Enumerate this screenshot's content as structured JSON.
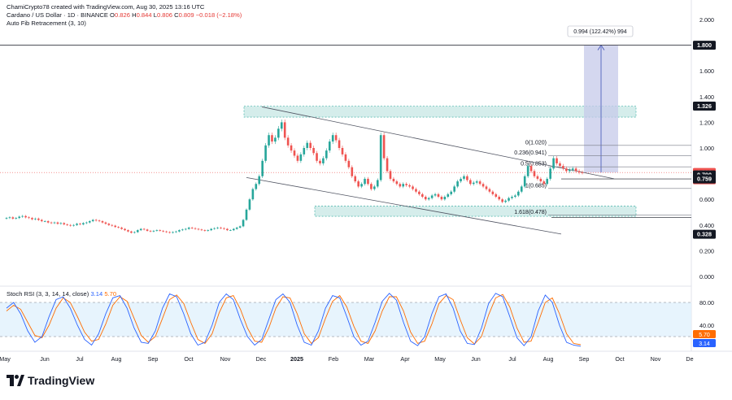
{
  "header": {
    "author_line": "ChamiCrypto78 created with TradingView.com, Aug 30, 2025 13:16 UTC",
    "symbol": "Cardano / US Dollar · 1D · BINANCE",
    "o_label": "O",
    "o_value": "0.826",
    "h_label": "H",
    "h_value": "0.844",
    "l_label": "L",
    "l_value": "0.806",
    "c_label": "C",
    "c_value": "0.809",
    "change": "−0.018 (−2.18%)",
    "indicator": "Auto Fib Retracement (3, 10)"
  },
  "rsi_header": {
    "label": "Stoch RSI (3, 3, 14, 14, close)",
    "k_value": "3.14",
    "d_value": "5.70"
  },
  "brand": {
    "name": "TradingView"
  },
  "colors": {
    "up": "#26a69a",
    "down": "#ef5350",
    "zone": "#b2dfdb",
    "zone_border": "#26a69a",
    "measure": "#c5cae9",
    "measure_line": "#3f51b5",
    "rsi_k": "#2962ff",
    "rsi_d": "#ff6d00",
    "rsi_band": "#e3f2fd"
  },
  "chart_data": [
    {
      "type": "candlestick",
      "title": "Cardano / US Dollar · 1D · BINANCE",
      "x_ticks": [
        "May",
        "Jun",
        "Jul",
        "Aug",
        "Sep",
        "Oct",
        "Nov",
        "Dec",
        "2025",
        "Feb",
        "Mar",
        "Apr",
        "May",
        "Jun",
        "Jul",
        "Aug",
        "Sep",
        "Oct",
        "Nov",
        "De"
      ],
      "y_ticks": [
        "0.000",
        "0.200",
        "0.400",
        "0.600",
        "0.800",
        "1.000",
        "1.200",
        "1.400",
        "1.600",
        "1.800",
        "2.000"
      ],
      "ylim": [
        0.0,
        2.0
      ],
      "price_tags": [
        {
          "value": "1.800",
          "price": 1.8,
          "style": "dark"
        },
        {
          "value": "1.326",
          "price": 1.326,
          "style": "dark"
        },
        {
          "value": "0.809",
          "price": 0.809,
          "style": "red",
          "sub": "10:43:01"
        },
        {
          "value": "0.790",
          "price": 0.79,
          "style": "dark"
        },
        {
          "value": "0.759",
          "price": 0.759,
          "style": "dark"
        },
        {
          "value": "0.328",
          "price": 0.328,
          "style": "dark"
        }
      ],
      "fib_levels": [
        {
          "label": "0(1.020)",
          "price": 1.02
        },
        {
          "label": "0.236(0.941)",
          "price": 0.941
        },
        {
          "label": "0.5(0.853)",
          "price": 0.853
        },
        {
          "label": "1(0.685)",
          "price": 0.685
        },
        {
          "label": "1.618(0.478)",
          "price": 0.478
        }
      ],
      "measure_label": "0.994 (122.42%) 994",
      "zones": [
        {
          "name": "resistance-zone",
          "top": 1.326,
          "bottom": 1.24
        },
        {
          "name": "support-zone",
          "top": 0.548,
          "bottom": 0.468
        }
      ],
      "closes": [
        0.455,
        0.46,
        0.45,
        0.455,
        0.465,
        0.47,
        0.46,
        0.455,
        0.445,
        0.45,
        0.44,
        0.43,
        0.43,
        0.42,
        0.415,
        0.42,
        0.41,
        0.415,
        0.405,
        0.4,
        0.395,
        0.4,
        0.41,
        0.405,
        0.415,
        0.42,
        0.43,
        0.44,
        0.435,
        0.43,
        0.42,
        0.41,
        0.4,
        0.395,
        0.385,
        0.38,
        0.37,
        0.36,
        0.35,
        0.34,
        0.345,
        0.36,
        0.37,
        0.365,
        0.355,
        0.35,
        0.355,
        0.36,
        0.355,
        0.35,
        0.345,
        0.34,
        0.345,
        0.35,
        0.36,
        0.365,
        0.37,
        0.38,
        0.375,
        0.37,
        0.365,
        0.36,
        0.355,
        0.36,
        0.37,
        0.375,
        0.38,
        0.375,
        0.37,
        0.36,
        0.36,
        0.37,
        0.38,
        0.39,
        0.44,
        0.52,
        0.6,
        0.68,
        0.72,
        0.78,
        0.9,
        1.02,
        1.1,
        1.05,
        1.08,
        1.15,
        1.2,
        1.08,
        1.02,
        0.98,
        0.94,
        0.9,
        0.95,
        1.0,
        1.04,
        1.0,
        0.96,
        0.9,
        0.88,
        0.92,
        0.98,
        1.05,
        1.1,
        1.06,
        1.0,
        0.95,
        0.9,
        0.85,
        0.78,
        0.74,
        0.7,
        0.72,
        0.76,
        0.72,
        0.68,
        0.7,
        0.75,
        1.1,
        0.92,
        0.82,
        0.76,
        0.74,
        0.72,
        0.7,
        0.72,
        0.71,
        0.7,
        0.68,
        0.66,
        0.64,
        0.62,
        0.6,
        0.61,
        0.63,
        0.64,
        0.62,
        0.6,
        0.62,
        0.64,
        0.66,
        0.7,
        0.74,
        0.76,
        0.78,
        0.75,
        0.72,
        0.73,
        0.74,
        0.72,
        0.7,
        0.68,
        0.66,
        0.64,
        0.62,
        0.6,
        0.58,
        0.59,
        0.61,
        0.62,
        0.63,
        0.66,
        0.7,
        0.78,
        0.86,
        0.82,
        0.78,
        0.76,
        0.74,
        0.72,
        0.76,
        0.84,
        0.92,
        0.88,
        0.86,
        0.84,
        0.82,
        0.83,
        0.84,
        0.82,
        0.81,
        0.809
      ],
      "stoch_rsi": {
        "label": "Stoch RSI (3, 3, 14, 14, close)",
        "k_last": 3.14,
        "d_last": 5.7,
        "y_ticks": [
          "40.00",
          "80.00"
        ],
        "band": [
          20,
          80
        ],
        "k_values": [
          70,
          80,
          60,
          30,
          10,
          20,
          55,
          85,
          90,
          70,
          40,
          15,
          5,
          25,
          60,
          88,
          92,
          70,
          35,
          10,
          8,
          30,
          70,
          95,
          90,
          60,
          25,
          5,
          10,
          40,
          80,
          95,
          85,
          50,
          20,
          5,
          15,
          50,
          85,
          95,
          80,
          40,
          10,
          5,
          30,
          70,
          92,
          88,
          55,
          20,
          5,
          12,
          45,
          82,
          96,
          84,
          45,
          12,
          4,
          20,
          60,
          90,
          95,
          70,
          30,
          8,
          6,
          35,
          78,
          96,
          90,
          55,
          18,
          4,
          20,
          65,
          93,
          80,
          40,
          10,
          5,
          3
        ],
        "d_values": [
          65,
          75,
          68,
          45,
          22,
          18,
          40,
          70,
          88,
          80,
          55,
          28,
          12,
          15,
          42,
          75,
          90,
          82,
          52,
          22,
          10,
          20,
          52,
          85,
          93,
          78,
          45,
          15,
          8,
          25,
          62,
          88,
          92,
          68,
          35,
          12,
          10,
          35,
          70,
          90,
          88,
          60,
          25,
          8,
          18,
          52,
          82,
          92,
          72,
          38,
          12,
          8,
          30,
          65,
          90,
          90,
          65,
          28,
          8,
          12,
          42,
          78,
          92,
          85,
          50,
          18,
          7,
          20,
          58,
          88,
          94,
          72,
          35,
          10,
          12,
          45,
          80,
          88,
          60,
          25,
          8,
          5.7
        ]
      }
    }
  ]
}
